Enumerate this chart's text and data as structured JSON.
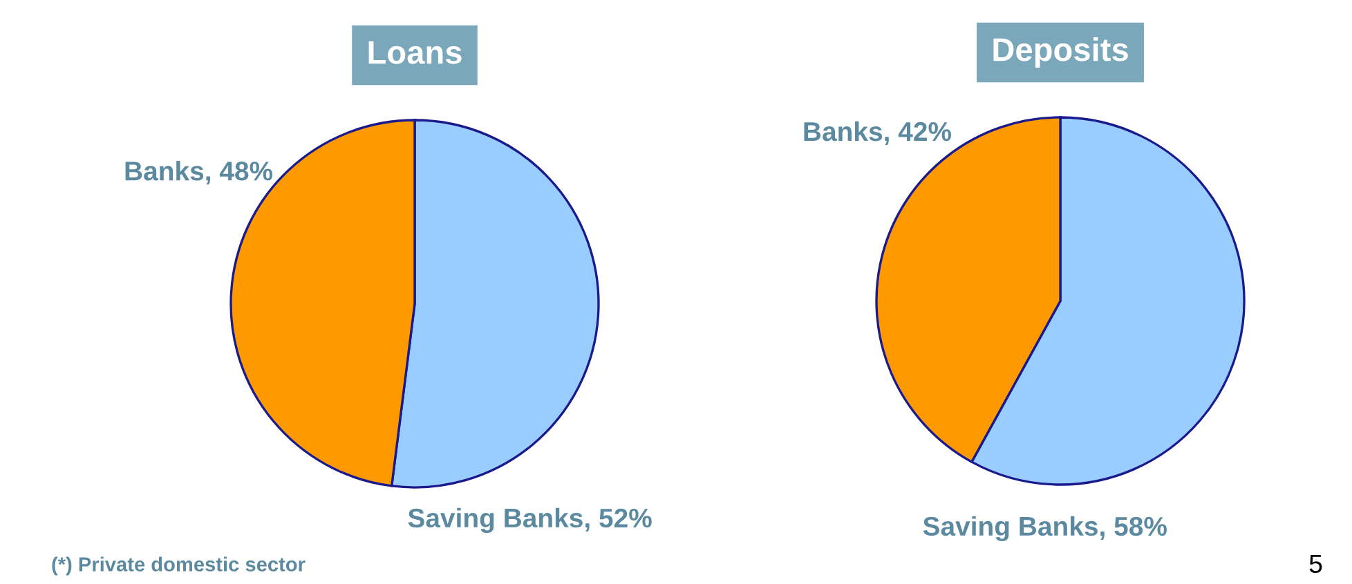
{
  "chart_data": [
    {
      "type": "pie",
      "title": "Loans",
      "categories": [
        "Saving Banks",
        "Banks"
      ],
      "values": [
        52,
        48
      ],
      "value_labels": [
        ", 52%",
        ", 48%"
      ],
      "colors": [
        "#99ccff",
        "#ff9900"
      ],
      "annotations": [
        "(*) Private domestic sector"
      ]
    },
    {
      "type": "pie",
      "title": "Deposits",
      "categories": [
        "Saving Banks",
        "Banks"
      ],
      "values": [
        58,
        42
      ],
      "value_labels": [
        ", 58%",
        ", 42%"
      ],
      "colors": [
        "#99ccff",
        "#ff9900"
      ],
      "annotations": [
        "5"
      ]
    }
  ]
}
